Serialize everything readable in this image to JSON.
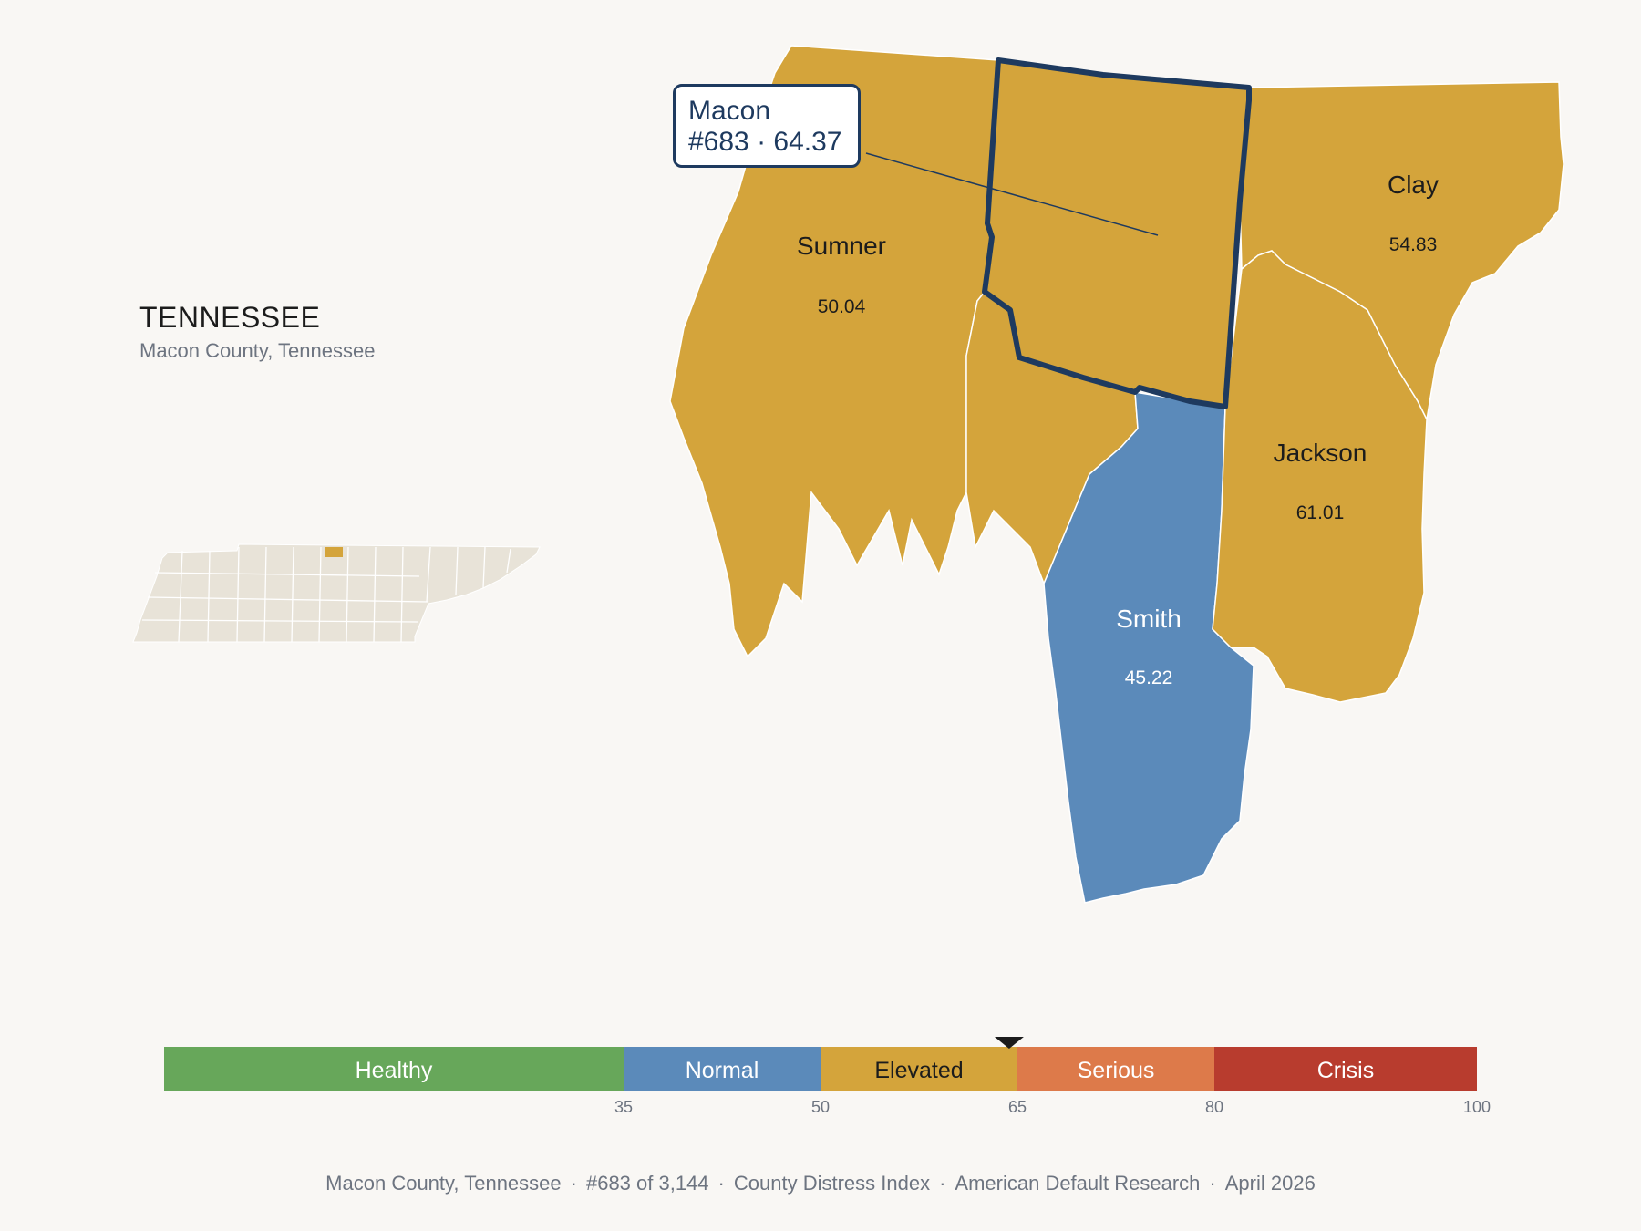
{
  "header": {
    "state_name": "TENNESSEE",
    "subtitle": "Macon County, Tennessee"
  },
  "callout": {
    "county": "Macon",
    "detail": "#683 · 64.37"
  },
  "counties": [
    {
      "name": "Sumner",
      "score": "50.04",
      "category": "Elevated"
    },
    {
      "name": "Clay",
      "score": "54.83",
      "category": "Elevated"
    },
    {
      "name": "Jackson",
      "score": "61.01",
      "category": "Elevated"
    },
    {
      "name": "Smith",
      "score": "45.22",
      "category": "Normal"
    },
    {
      "name": "Macon",
      "score": "64.37",
      "category": "Elevated",
      "selected": true
    }
  ],
  "scale": {
    "min": 0,
    "max": 100,
    "marker_value": 64.37,
    "segments": [
      {
        "label": "Healthy",
        "from": 0,
        "to": 35,
        "color": "#67a75a"
      },
      {
        "label": "Normal",
        "from": 35,
        "to": 50,
        "color": "#5b8aba"
      },
      {
        "label": "Elevated",
        "from": 50,
        "to": 65,
        "color": "#d4a43b"
      },
      {
        "label": "Serious",
        "from": 65,
        "to": 80,
        "color": "#dd7a4a"
      },
      {
        "label": "Crisis",
        "from": 80,
        "to": 100,
        "color": "#b83c2e"
      }
    ],
    "ticks": [
      "35",
      "50",
      "65",
      "80",
      "100"
    ]
  },
  "footer": {
    "location": "Macon County, Tennessee",
    "rank": "#683 of 3,144",
    "index_name": "County Distress Index",
    "publisher": "American Default Research",
    "date": "April 2026",
    "separator": "·"
  },
  "colors": {
    "elevated": "#d4a43b",
    "normal": "#5b8aba",
    "highlight_outline": "#1e3a5f",
    "inset_fill": "#e8e3d8",
    "background": "#f9f7f4"
  }
}
